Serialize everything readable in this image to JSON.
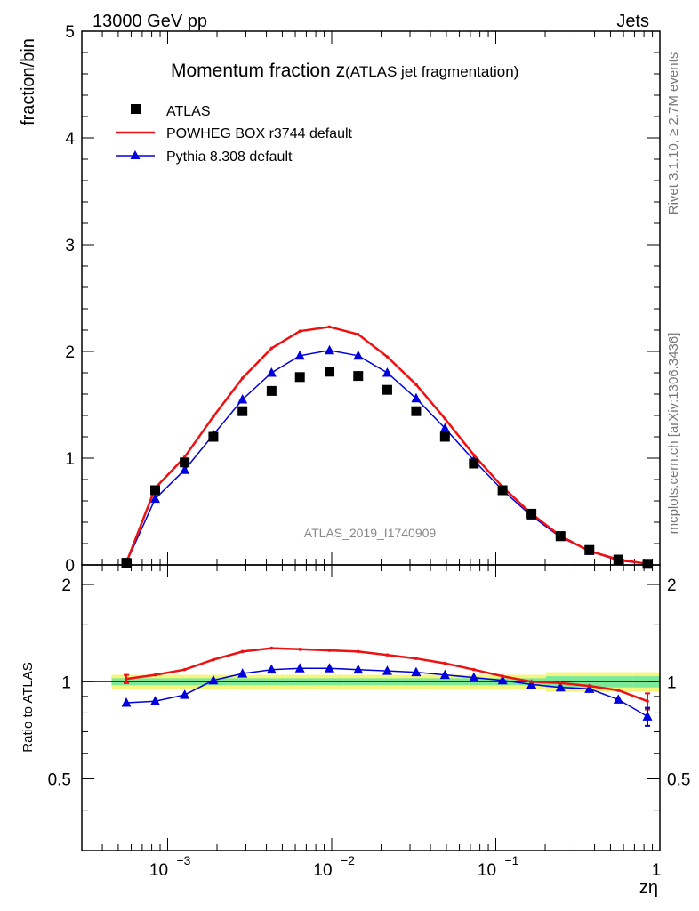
{
  "header": {
    "left": "13000 GeV pp",
    "right": "Jets"
  },
  "side_labels": {
    "rivet": "Rivet 3.1.10, ≥ 2.7M events",
    "mcplots": "mcplots.cern.ch [arXiv:1306.3436]"
  },
  "chart_data": {
    "type": "line",
    "title_main": "Momentum fraction z",
    "title_sub": "(ATLAS jet fragmentation)",
    "analysis_label": "ATLAS_2019_I1740909",
    "xlabel": "zη",
    "ylabel": "fraction/bin",
    "ratio_ylabel": "Ratio to ATLAS",
    "xscale": "log",
    "xlim": [
      0.0003,
      1.0
    ],
    "ylim": [
      0,
      5
    ],
    "ratio_ylim": [
      0.3,
      2.3
    ],
    "x_tick_labels": [
      "10^-3",
      "10^-2",
      "10^-1",
      "1"
    ],
    "y_tick_labels": [
      "0",
      "1",
      "2",
      "3",
      "4",
      "5"
    ],
    "ratio_tick_labels": [
      "0.5",
      "1",
      "2"
    ],
    "legend_position": "top-left",
    "x": [
      0.00056,
      0.00084,
      0.00127,
      0.0019,
      0.00286,
      0.0043,
      0.0064,
      0.0097,
      0.0145,
      0.0218,
      0.0327,
      0.049,
      0.0735,
      0.11,
      0.165,
      0.248,
      0.372,
      0.558,
      0.84
    ],
    "series": [
      {
        "name": "ATLAS",
        "marker": "square",
        "color": "#000000",
        "values": [
          0.02,
          0.7,
          0.96,
          1.2,
          1.44,
          1.63,
          1.76,
          1.81,
          1.77,
          1.64,
          1.44,
          1.2,
          0.95,
          0.7,
          0.48,
          0.27,
          0.14,
          0.05,
          0.01
        ]
      },
      {
        "name": "POWHEG BOX r3744 default",
        "marker": "line",
        "color": "#ee1111",
        "values": [
          0.02,
          0.72,
          1.01,
          1.39,
          1.75,
          2.03,
          2.19,
          2.23,
          2.16,
          1.95,
          1.69,
          1.37,
          1.03,
          0.73,
          0.48,
          0.27,
          0.13,
          0.05,
          0.01
        ]
      },
      {
        "name": "Pythia 8.308 default",
        "marker": "triangle",
        "color": "#0000dd",
        "values": [
          0.02,
          0.62,
          0.89,
          1.22,
          1.55,
          1.8,
          1.96,
          2.01,
          1.96,
          1.8,
          1.56,
          1.28,
          0.98,
          0.7,
          0.46,
          0.26,
          0.13,
          0.04,
          0.01
        ]
      }
    ],
    "ratio_series": [
      {
        "name": "POWHEG BOX r3744 default",
        "color": "#ee1111",
        "values": [
          1.02,
          1.05,
          1.09,
          1.17,
          1.24,
          1.27,
          1.26,
          1.25,
          1.24,
          1.21,
          1.18,
          1.14,
          1.09,
          1.04,
          1.0,
          0.99,
          0.97,
          0.94,
          0.87
        ]
      },
      {
        "name": "Pythia 8.308 default",
        "color": "#0000dd",
        "values": [
          0.86,
          0.87,
          0.91,
          1.01,
          1.06,
          1.09,
          1.1,
          1.1,
          1.09,
          1.08,
          1.07,
          1.05,
          1.03,
          1.01,
          0.98,
          0.96,
          0.95,
          0.88,
          0.78
        ]
      }
    ],
    "band_colors": {
      "inner": "#7ce89a",
      "outer": "#f5f57a"
    }
  }
}
